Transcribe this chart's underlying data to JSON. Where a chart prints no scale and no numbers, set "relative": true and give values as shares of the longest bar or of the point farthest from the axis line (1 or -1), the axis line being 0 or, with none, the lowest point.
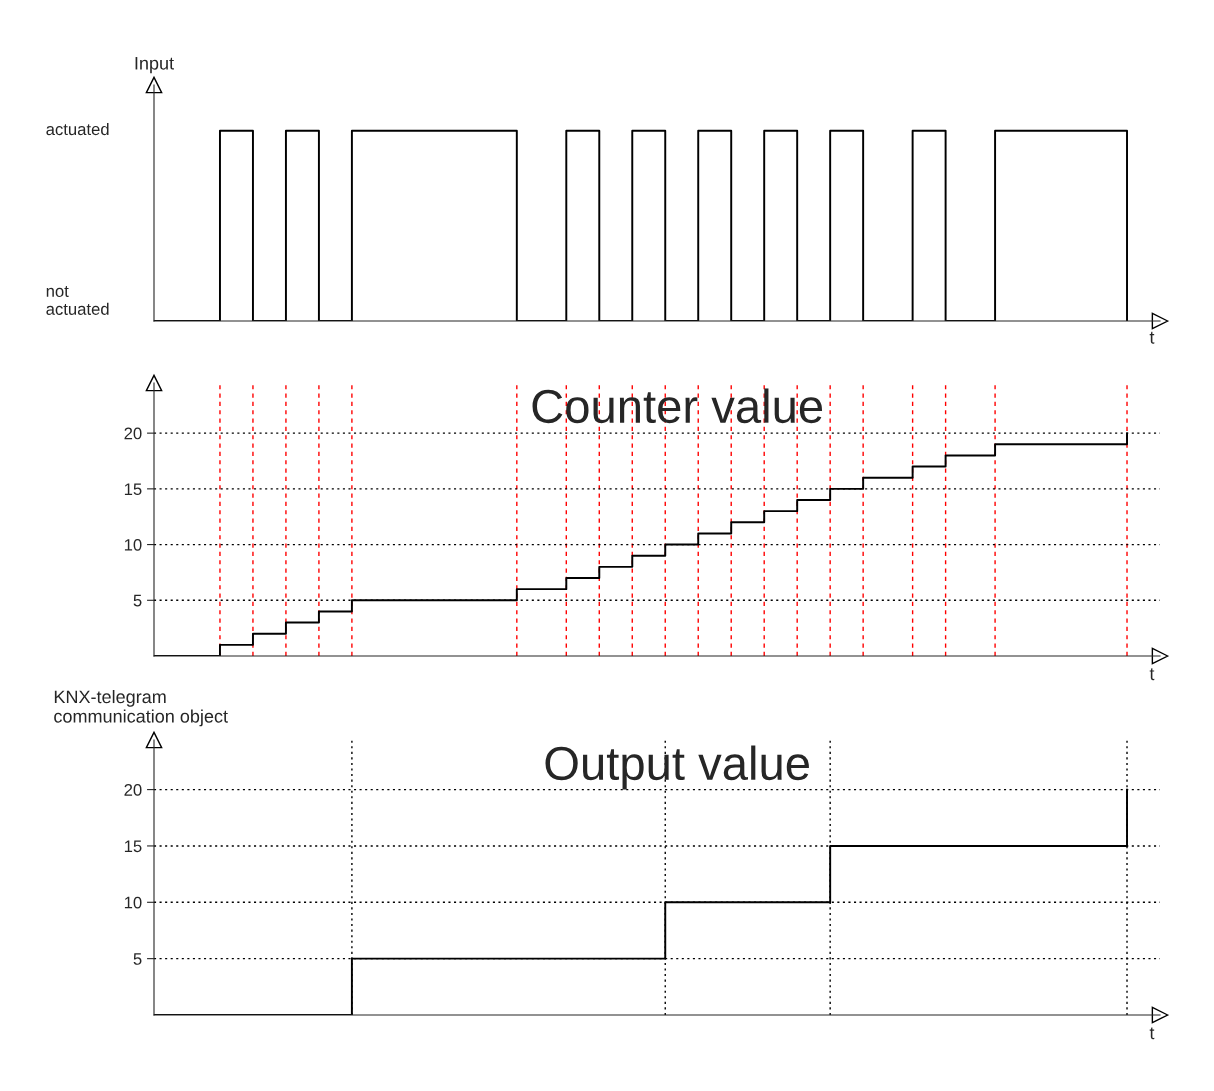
{
  "chart_data": [
    {
      "type": "step",
      "ylabel": "Input",
      "xlabel": "t",
      "relative": true,
      "tick_labels": false,
      "annotations": [
        "actuated",
        "not\nactuated"
      ],
      "grid": false,
      "categories": [
        null,
        null,
        null,
        null,
        null,
        null,
        null,
        null,
        null,
        null,
        null,
        null,
        null,
        null,
        null,
        null,
        null,
        null,
        null,
        null,
        null,
        null,
        null,
        null,
        null,
        null,
        null,
        null,
        null,
        null,
        null,
        null,
        null,
        null,
        null,
        null,
        null,
        null,
        null,
        null,
        null,
        null,
        null,
        null,
        null,
        null,
        null,
        null,
        null,
        null,
        null,
        null,
        null,
        null,
        null,
        null,
        null,
        null,
        null,
        null
      ],
      "series": [
        {
          "color": "#000000",
          "values": [
            0,
            0,
            0,
            0,
            1,
            1,
            0,
            0,
            1,
            1,
            0,
            0,
            1,
            1,
            1,
            1,
            1,
            1,
            1,
            1,
            1,
            1,
            0,
            0,
            0,
            1,
            1,
            0,
            0,
            1,
            1,
            0,
            0,
            1,
            1,
            0,
            0,
            1,
            1,
            0,
            0,
            1,
            1,
            0,
            0,
            0,
            1,
            1,
            0,
            0,
            0,
            1,
            1,
            1,
            1,
            1,
            1,
            1,
            1,
            0
          ]
        }
      ]
    },
    {
      "type": "step",
      "title": "Counter value",
      "xlabel": "t",
      "ylim": [
        0,
        24.5
      ],
      "tick_labels": "y",
      "yticks": [
        5,
        10,
        15,
        20
      ],
      "grid": true,
      "categories": [
        null,
        null,
        null,
        null,
        null,
        null,
        null,
        null,
        null,
        null,
        null,
        null,
        null,
        null,
        null,
        null,
        null,
        null,
        null,
        null,
        null,
        null,
        null,
        null,
        null,
        null,
        null,
        null,
        null,
        null,
        null,
        null,
        null,
        null,
        null,
        null,
        null,
        null,
        null,
        null,
        null,
        null,
        null,
        null,
        null,
        null,
        null,
        null,
        null,
        null,
        null,
        null,
        null,
        null,
        null,
        null,
        null,
        null,
        null,
        null
      ],
      "series": [
        {
          "color": "#000000",
          "values": [
            0,
            0,
            0,
            0,
            1,
            1,
            2,
            2,
            3,
            3,
            4,
            4,
            5,
            5,
            5,
            5,
            5,
            5,
            5,
            5,
            5,
            5,
            6,
            6,
            6,
            7,
            7,
            8,
            8,
            9,
            9,
            10,
            10,
            11,
            11,
            12,
            12,
            13,
            13,
            14,
            14,
            15,
            15,
            16,
            16,
            16,
            17,
            17,
            18,
            18,
            18,
            19,
            19,
            19,
            19,
            19,
            19,
            19,
            19,
            20
          ]
        }
      ]
    },
    {
      "type": "step",
      "title": "Output value",
      "ylabel": "KNX-telegram\ncommunication object",
      "xlabel": "t",
      "ylim": [
        0,
        24.4
      ],
      "tick_labels": "y",
      "yticks": [
        5,
        10,
        15,
        20
      ],
      "grid": true,
      "categories": [
        null,
        null,
        null,
        null,
        null,
        null,
        null,
        null,
        null,
        null,
        null,
        null,
        null,
        null,
        null,
        null,
        null,
        null,
        null,
        null,
        null,
        null,
        null,
        null,
        null,
        null,
        null,
        null,
        null,
        null,
        null,
        null,
        null,
        null,
        null,
        null,
        null,
        null,
        null,
        null,
        null,
        null,
        null,
        null,
        null,
        null,
        null,
        null,
        null,
        null,
        null,
        null,
        null,
        null,
        null,
        null,
        null,
        null,
        null,
        null
      ],
      "series": [
        {
          "color": "#000000",
          "values": [
            0,
            0,
            0,
            0,
            0,
            0,
            0,
            0,
            0,
            0,
            0,
            0,
            5,
            5,
            5,
            5,
            5,
            5,
            5,
            5,
            5,
            5,
            5,
            5,
            5,
            5,
            5,
            5,
            5,
            5,
            5,
            10,
            10,
            10,
            10,
            10,
            10,
            10,
            10,
            10,
            10,
            15,
            15,
            15,
            15,
            15,
            15,
            15,
            15,
            15,
            15,
            15,
            15,
            15,
            15,
            15,
            15,
            15,
            15,
            20
          ]
        }
      ]
    }
  ]
}
